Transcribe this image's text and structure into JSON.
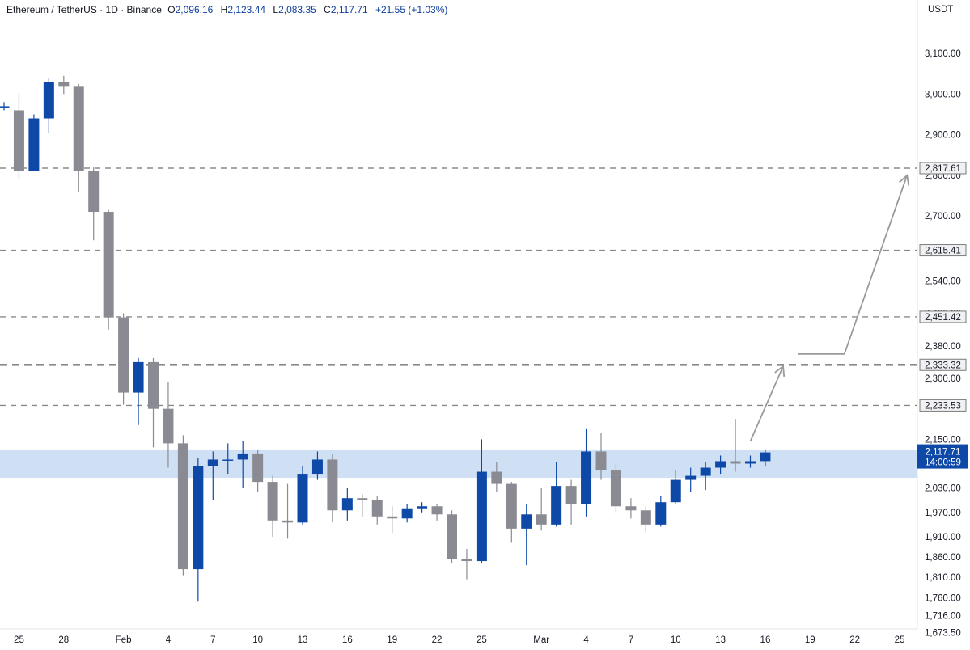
{
  "header": {
    "symbol": "Ethereum / TetherUS",
    "interval": "1D",
    "exchange": "Binance",
    "separator": " · ",
    "o_label": "O",
    "o_value": "2,096.16",
    "h_label": "H",
    "h_value": "2,123.44",
    "l_label": "L",
    "l_value": "2,083.35",
    "c_label": "C",
    "c_value": "2,117.71",
    "change": "+21.55 (+1.03%)"
  },
  "axis_unit": "USDT",
  "colors": {
    "up": "#0e49a8",
    "down": "#8a8b92",
    "zone": "#cfe0f5",
    "level_line": "#8a8a8a",
    "level_badge": "#f1f1f3",
    "current_badge": "#0e49a8"
  },
  "chart_data": {
    "type": "candlestick",
    "ylim": [
      1655,
      3160
    ],
    "y_ticks": [
      {
        "value": 3100,
        "label": "3,100.00"
      },
      {
        "value": 3000,
        "label": "3,000.00"
      },
      {
        "value": 2900,
        "label": "2,900.00"
      },
      {
        "value": 2800,
        "label": "2,800.00"
      },
      {
        "value": 2700,
        "label": "2,700.00"
      },
      {
        "value": 2620,
        "label": "2,620.00"
      },
      {
        "value": 2540,
        "label": "2,540.00"
      },
      {
        "value": 2460,
        "label": "2,460.00"
      },
      {
        "value": 2380,
        "label": "2,380.00"
      },
      {
        "value": 2300,
        "label": "2,300.00"
      },
      {
        "value": 2150,
        "label": "2,150.00"
      },
      {
        "value": 2030,
        "label": "2,030.00"
      },
      {
        "value": 1970,
        "label": "1,970.00"
      },
      {
        "value": 1910,
        "label": "1,910.00"
      },
      {
        "value": 1860,
        "label": "1,860.00"
      },
      {
        "value": 1810,
        "label": "1,810.00"
      },
      {
        "value": 1760,
        "label": "1,760.00"
      },
      {
        "value": 1716,
        "label": "1,716.00"
      },
      {
        "value": 1673.5,
        "label": "1,673.50"
      }
    ],
    "x_ticks": [
      {
        "index": 1,
        "label": "25"
      },
      {
        "index": 4,
        "label": "28"
      },
      {
        "index": 8,
        "label": "Feb"
      },
      {
        "index": 11,
        "label": "4"
      },
      {
        "index": 14,
        "label": "7"
      },
      {
        "index": 17,
        "label": "10"
      },
      {
        "index": 20,
        "label": "13"
      },
      {
        "index": 23,
        "label": "16"
      },
      {
        "index": 26,
        "label": "19"
      },
      {
        "index": 29,
        "label": "22"
      },
      {
        "index": 32,
        "label": "25"
      },
      {
        "index": 36,
        "label": "Mar"
      },
      {
        "index": 39,
        "label": "4"
      },
      {
        "index": 42,
        "label": "7"
      },
      {
        "index": 45,
        "label": "10"
      },
      {
        "index": 48,
        "label": "13"
      },
      {
        "index": 51,
        "label": "16"
      },
      {
        "index": 54,
        "label": "19"
      },
      {
        "index": 57,
        "label": "22"
      },
      {
        "index": 60,
        "label": "25"
      }
    ],
    "candles": [
      {
        "o": 2970,
        "h": 2980,
        "l": 2960,
        "c": 2970
      },
      {
        "o": 2960,
        "h": 3000,
        "l": 2790,
        "c": 2810
      },
      {
        "o": 2810,
        "h": 2950,
        "l": 2810,
        "c": 2940
      },
      {
        "o": 2940,
        "h": 3040,
        "l": 2905,
        "c": 3030
      },
      {
        "o": 3030,
        "h": 3045,
        "l": 3000,
        "c": 3020
      },
      {
        "o": 3020,
        "h": 3025,
        "l": 2760,
        "c": 2810
      },
      {
        "o": 2810,
        "h": 2820,
        "l": 2640,
        "c": 2710
      },
      {
        "o": 2710,
        "h": 2715,
        "l": 2420,
        "c": 2450
      },
      {
        "o": 2450,
        "h": 2460,
        "l": 2235,
        "c": 2265
      },
      {
        "o": 2265,
        "h": 2350,
        "l": 2185,
        "c": 2340
      },
      {
        "o": 2340,
        "h": 2350,
        "l": 2130,
        "c": 2225
      },
      {
        "o": 2225,
        "h": 2290,
        "l": 2080,
        "c": 2140
      },
      {
        "o": 2140,
        "h": 2160,
        "l": 1815,
        "c": 1830
      },
      {
        "o": 1830,
        "h": 2105,
        "l": 1750,
        "c": 2085
      },
      {
        "o": 2085,
        "h": 2120,
        "l": 2000,
        "c": 2100
      },
      {
        "o": 2100,
        "h": 2140,
        "l": 2065,
        "c": 2100
      },
      {
        "o": 2100,
        "h": 2145,
        "l": 2030,
        "c": 2115
      },
      {
        "o": 2115,
        "h": 2125,
        "l": 2020,
        "c": 2045
      },
      {
        "o": 2045,
        "h": 2060,
        "l": 1910,
        "c": 1950
      },
      {
        "o": 1950,
        "h": 2040,
        "l": 1905,
        "c": 1945
      },
      {
        "o": 1945,
        "h": 2085,
        "l": 1940,
        "c": 2065
      },
      {
        "o": 2065,
        "h": 2120,
        "l": 2050,
        "c": 2100
      },
      {
        "o": 2100,
        "h": 2115,
        "l": 1945,
        "c": 1975
      },
      {
        "o": 1975,
        "h": 2030,
        "l": 1950,
        "c": 2005
      },
      {
        "o": 2005,
        "h": 2015,
        "l": 1960,
        "c": 2000
      },
      {
        "o": 2000,
        "h": 2010,
        "l": 1940,
        "c": 1960
      },
      {
        "o": 1960,
        "h": 1985,
        "l": 1920,
        "c": 1955
      },
      {
        "o": 1955,
        "h": 1990,
        "l": 1945,
        "c": 1980
      },
      {
        "o": 1980,
        "h": 1995,
        "l": 1970,
        "c": 1985
      },
      {
        "o": 1985,
        "h": 1990,
        "l": 1950,
        "c": 1965
      },
      {
        "o": 1965,
        "h": 1975,
        "l": 1845,
        "c": 1855
      },
      {
        "o": 1855,
        "h": 1880,
        "l": 1805,
        "c": 1850
      },
      {
        "o": 1850,
        "h": 2150,
        "l": 1845,
        "c": 2070
      },
      {
        "o": 2070,
        "h": 2095,
        "l": 2020,
        "c": 2040
      },
      {
        "o": 2040,
        "h": 2045,
        "l": 1895,
        "c": 1930
      },
      {
        "o": 1930,
        "h": 1990,
        "l": 1840,
        "c": 1965
      },
      {
        "o": 1965,
        "h": 2030,
        "l": 1925,
        "c": 1940
      },
      {
        "o": 1940,
        "h": 2095,
        "l": 1935,
        "c": 2035
      },
      {
        "o": 2035,
        "h": 2050,
        "l": 1940,
        "c": 1990
      },
      {
        "o": 1990,
        "h": 2175,
        "l": 1960,
        "c": 2120
      },
      {
        "o": 2120,
        "h": 2165,
        "l": 2050,
        "c": 2075
      },
      {
        "o": 2075,
        "h": 2090,
        "l": 1970,
        "c": 1985
      },
      {
        "o": 1985,
        "h": 2005,
        "l": 1955,
        "c": 1975
      },
      {
        "o": 1975,
        "h": 1985,
        "l": 1920,
        "c": 1940
      },
      {
        "o": 1940,
        "h": 2010,
        "l": 1935,
        "c": 1995
      },
      {
        "o": 1995,
        "h": 2075,
        "l": 1990,
        "c": 2050
      },
      {
        "o": 2050,
        "h": 2080,
        "l": 2020,
        "c": 2060
      },
      {
        "o": 2060,
        "h": 2095,
        "l": 2025,
        "c": 2080
      },
      {
        "o": 2080,
        "h": 2110,
        "l": 2065,
        "c": 2096
      },
      {
        "o": 2096,
        "h": 2200,
        "l": 2070,
        "c": 2090
      },
      {
        "o": 2090,
        "h": 2110,
        "l": 2080,
        "c": 2096
      },
      {
        "o": 2096.16,
        "h": 2123.44,
        "l": 2083.35,
        "c": 2117.71
      }
    ],
    "zone": {
      "low": 2055,
      "high": 2125
    },
    "levels": [
      {
        "value": 2817.61,
        "label": "2,817.61",
        "bold": false
      },
      {
        "value": 2615.41,
        "label": "2,615.41",
        "bold": false
      },
      {
        "value": 2451.42,
        "label": "2,451.42",
        "bold": false
      },
      {
        "value": 2333.32,
        "label": "2,333.32",
        "bold": true
      },
      {
        "value": 2233.53,
        "label": "2,233.53",
        "bold": false
      }
    ],
    "current_price": {
      "value": 2117.71,
      "label": "2,117.71",
      "countdown": "14:00:59"
    },
    "projection_arrows": [
      {
        "points": [
          [
            50.0,
            2145
          ],
          [
            52.2,
            2330
          ]
        ]
      },
      {
        "points": [
          [
            53.2,
            2360
          ],
          [
            56.3,
            2360
          ],
          [
            60.5,
            2800
          ]
        ]
      }
    ]
  }
}
